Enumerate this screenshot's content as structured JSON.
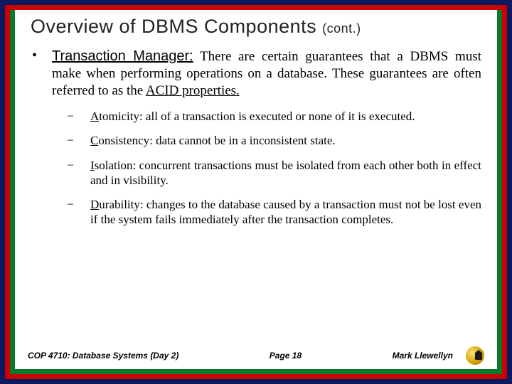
{
  "title_main": "Overview of DBMS Components",
  "title_cont": "(cont.)",
  "main": {
    "lead": "Transaction Manager:",
    "rest": "  There are certain guarantees that a DBMS must make when performing operations on a database.  These guarantees are often referred to as the ",
    "acid_link": "ACID properties."
  },
  "items": [
    {
      "letter": "A",
      "word": "tomicity:",
      "rest": "  all of a transaction is executed or none of it is executed."
    },
    {
      "letter": "C",
      "word": "onsistency:",
      "rest": " data cannot be in a inconsistent state."
    },
    {
      "letter": "I",
      "word": "solation:",
      "rest": " concurrent transactions must be isolated from each other both in effect and in visibility."
    },
    {
      "letter": "D",
      "word": "urability:",
      "rest": " changes to the database caused by a transaction must not be lost even if the system fails immediately after the transaction completes."
    }
  ],
  "footer": {
    "left": "COP 4710: Database Systems (Day 2)",
    "center": "Page 18",
    "right": "Mark Llewellyn"
  },
  "colors": {
    "outer": "#0a1a5e",
    "mid": "#cc0000",
    "inner": "#0a7a2a",
    "text": "#000000",
    "background": "#ffffff"
  }
}
